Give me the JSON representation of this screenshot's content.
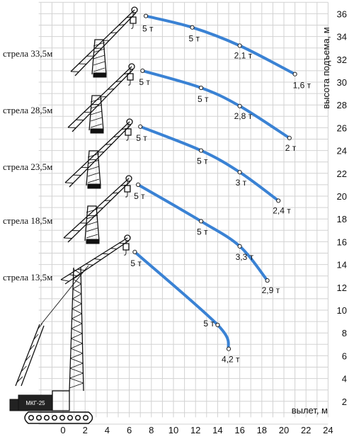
{
  "chart_data": {
    "type": "line",
    "xlabel": "вылет, м",
    "ylabel": "высота подъема, м",
    "xlim": [
      -2,
      24
    ],
    "ylim": [
      0,
      37
    ],
    "x_ticks": [
      "0",
      "2",
      "4",
      "6",
      "8",
      "10",
      "12",
      "14",
      "16",
      "18",
      "20",
      "22",
      "24"
    ],
    "y_ticks": [
      "2",
      "4",
      "6",
      "8",
      "10",
      "12",
      "14",
      "16",
      "18",
      "20",
      "22",
      "24",
      "26",
      "28",
      "30",
      "32",
      "34",
      "36"
    ],
    "grid": true,
    "crane_plate": "МКГ-25",
    "series": [
      {
        "name": "стрела 33,5м",
        "x": [
          7.5,
          11.7,
          16.0,
          21.0
        ],
        "y": [
          35.8,
          34.8,
          33.2,
          30.7
        ],
        "point_labels": [
          "5 т",
          "5 т",
          "2,1 т",
          "1,6 т"
        ]
      },
      {
        "name": "стрела 28,5м",
        "x": [
          7.2,
          12.5,
          16.0,
          20.5
        ],
        "y": [
          31.0,
          29.5,
          27.9,
          25.1
        ],
        "point_labels": [
          "5 т",
          "5 т",
          "2,8 т",
          "2 т"
        ]
      },
      {
        "name": "стрела 23,5м",
        "x": [
          7.0,
          12.5,
          16.0,
          19.5
        ],
        "y": [
          26.1,
          24.0,
          22.1,
          19.6
        ],
        "point_labels": [
          "5 т",
          "5 т",
          "3 т",
          "2,4 т"
        ]
      },
      {
        "name": "стрела 18,5м",
        "x": [
          6.8,
          12.5,
          16.0,
          18.5
        ],
        "y": [
          21.0,
          17.8,
          15.6,
          12.6
        ],
        "point_labels": [
          "5 т",
          "5 т",
          "3,3 т",
          "2,9 т"
        ]
      },
      {
        "name": "стрела 13,5м",
        "x": [
          6.5,
          14.0,
          15.0
        ],
        "y": [
          15.1,
          8.7,
          6.6
        ],
        "point_labels": [
          "5 т",
          "5 т",
          "4,2 т"
        ]
      }
    ]
  }
}
